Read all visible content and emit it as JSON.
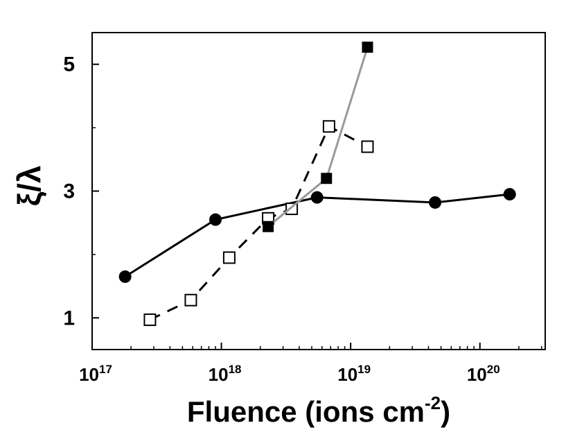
{
  "chart_data": {
    "type": "line",
    "title": "",
    "xlabel": {
      "text": "Fluence (ions cm",
      "superscript": "-2",
      "close": ")"
    },
    "ylabel": "ξ/λ",
    "x_scale": "log",
    "xlim": [
      1e+17,
      3.2e+20
    ],
    "ylim": [
      0.5,
      5.5
    ],
    "x_ticks": [
      {
        "value": 1e+17,
        "base": "10",
        "exp": "17"
      },
      {
        "value": 1e+18,
        "base": "10",
        "exp": "18"
      },
      {
        "value": 1e+19,
        "base": "10",
        "exp": "19"
      },
      {
        "value": 1e+20,
        "base": "10",
        "exp": "20"
      }
    ],
    "y_ticks": [
      {
        "value": 1,
        "label": "1"
      },
      {
        "value": 3,
        "label": "3"
      },
      {
        "value": 5,
        "label": "5"
      }
    ],
    "grid": false,
    "legend": "none",
    "series": [
      {
        "marker": "filled-circle",
        "line_style": "solid",
        "color": "#000000",
        "points": [
          {
            "x": 1.8e+17,
            "y": 1.65
          },
          {
            "x": 9e+17,
            "y": 2.55
          },
          {
            "x": 5.5e+18,
            "y": 2.9
          },
          {
            "x": 4.5e+19,
            "y": 2.82
          },
          {
            "x": 1.7e+20,
            "y": 2.95
          }
        ]
      },
      {
        "marker": "open-square",
        "line_style": "dashed",
        "color": "#000000",
        "points": [
          {
            "x": 2.8e+17,
            "y": 0.97
          },
          {
            "x": 5.8e+17,
            "y": 1.28
          },
          {
            "x": 1.15e+18,
            "y": 1.95
          },
          {
            "x": 2.3e+18,
            "y": 2.57
          },
          {
            "x": 3.5e+18,
            "y": 2.72
          },
          {
            "x": 6.8e+18,
            "y": 4.02
          },
          {
            "x": 1.35e+19,
            "y": 3.7
          }
        ]
      },
      {
        "marker": "filled-square",
        "line_style": "solid",
        "color": "#999999",
        "points": [
          {
            "x": 2.3e+18,
            "y": 2.44
          },
          {
            "x": 6.5e+18,
            "y": 3.2
          },
          {
            "x": 1.35e+19,
            "y": 5.27
          }
        ]
      }
    ]
  }
}
